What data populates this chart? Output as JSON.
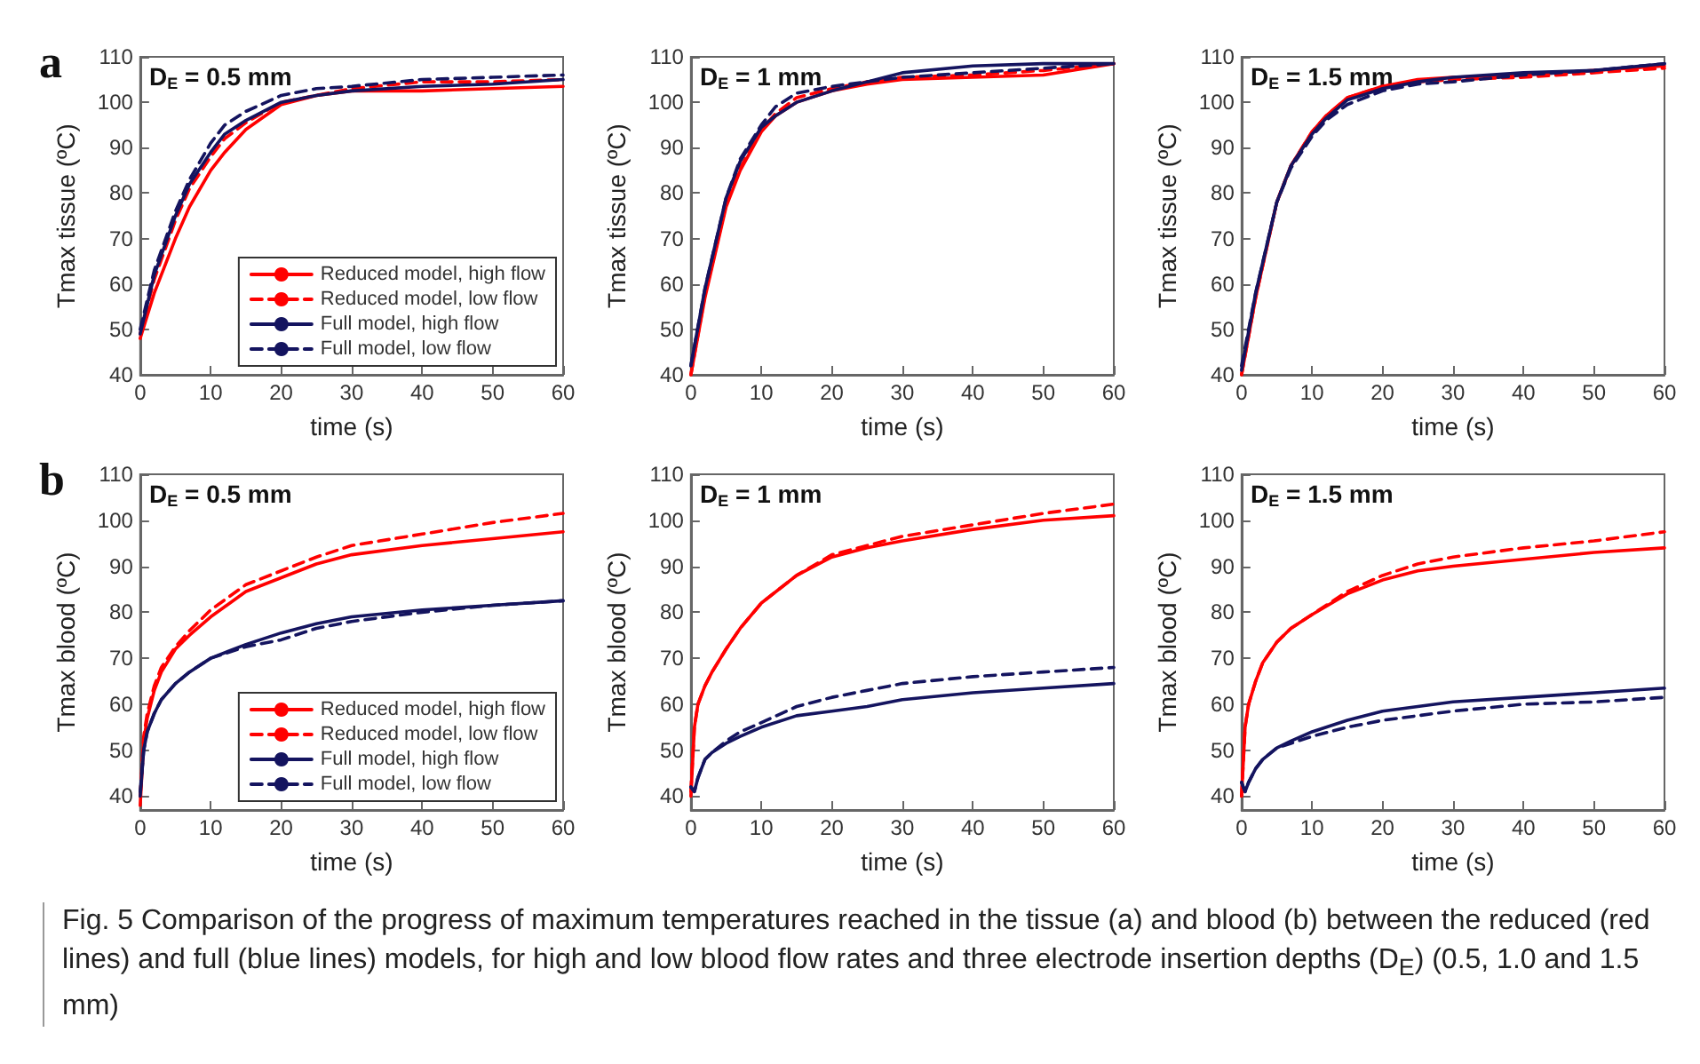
{
  "chart_data": [
    {
      "type": "line",
      "title": "a",
      "annotations": [
        "D$_{E}$ = 0.5 mm"
      ],
      "xlabel": "time (s)",
      "ylabel": "Tmax tissue (ºC)",
      "xlim": [
        0,
        60
      ],
      "xticks": [
        0,
        10,
        20,
        30,
        40,
        50,
        60
      ],
      "ylim": [
        40,
        110
      ],
      "yticks": [
        40,
        50,
        60,
        70,
        80,
        90,
        100,
        110
      ],
      "legend": "bottom right",
      "x": [
        0,
        2,
        5,
        7,
        10,
        12,
        15,
        20,
        25,
        30,
        40,
        50,
        60
      ],
      "series": [
        {
          "name": "Reduced model, high flow",
          "color": "#ff0000",
          "line_style": "solid",
          "values": [
            48,
            58,
            70,
            77,
            85,
            89,
            94,
            99.5,
            101.5,
            102.5,
            102.5,
            103,
            103.5
          ]
        },
        {
          "name": "Reduced model, low flow",
          "color": "#ff0000",
          "line_style": "dashed",
          "values": [
            49,
            61,
            74,
            81,
            88,
            92,
            95.5,
            100,
            101.5,
            103,
            104.5,
            104.5,
            105
          ]
        },
        {
          "name": "Full model, high flow",
          "color": "#14145f",
          "line_style": "solid",
          "values": [
            49,
            62,
            75,
            82,
            89,
            93,
            96,
            100,
            101.5,
            102.5,
            103.5,
            104,
            105
          ]
        },
        {
          "name": "Full model, low flow",
          "color": "#14145f",
          "line_style": "dashed",
          "values": [
            50,
            63,
            76,
            83,
            91,
            95,
            98,
            101.5,
            103,
            103.5,
            105,
            105.5,
            106
          ]
        }
      ]
    },
    {
      "type": "line",
      "annotations": [
        "D$_{E}$ = 1 mm"
      ],
      "xlabel": "time (s)",
      "ylabel": "Tmax tissue (ºC)",
      "xlim": [
        0,
        60
      ],
      "xticks": [
        0,
        10,
        20,
        30,
        40,
        50,
        60
      ],
      "ylim": [
        40,
        110
      ],
      "yticks": [
        40,
        50,
        60,
        70,
        80,
        90,
        100,
        110
      ],
      "x": [
        0,
        2,
        5,
        7,
        10,
        12,
        15,
        20,
        25,
        30,
        40,
        50,
        60
      ],
      "series": [
        {
          "color": "#ff0000",
          "line_style": "solid",
          "values": [
            40,
            57,
            77,
            85,
            93.5,
            97,
            100,
            102.5,
            104,
            105,
            105.5,
            106,
            108.5
          ]
        },
        {
          "color": "#ff0000",
          "line_style": "dashed",
          "values": [
            40,
            57.5,
            77.5,
            85.5,
            94,
            97.5,
            101,
            103,
            104.5,
            105.5,
            106,
            107,
            108.5
          ]
        },
        {
          "color": "#14145f",
          "line_style": "solid",
          "values": [
            42,
            59,
            79,
            87,
            94.5,
            97,
            100,
            102.5,
            104.5,
            106.5,
            108,
            108.5,
            108.5
          ]
        },
        {
          "color": "#14145f",
          "line_style": "dashed",
          "values": [
            42,
            59,
            79,
            87.5,
            95,
            99,
            102,
            103.5,
            104.5,
            105.5,
            106.5,
            107.5,
            108.5
          ]
        }
      ]
    },
    {
      "type": "line",
      "annotations": [
        "D$_{E}$ = 1.5 mm"
      ],
      "xlabel": "time (s)",
      "ylabel": "Tmax tissue (ºC)",
      "xlim": [
        0,
        60
      ],
      "xticks": [
        0,
        10,
        20,
        30,
        40,
        50,
        60
      ],
      "ylim": [
        40,
        110
      ],
      "yticks": [
        40,
        50,
        60,
        70,
        80,
        90,
        100,
        110
      ],
      "x": [
        0,
        2,
        5,
        7,
        10,
        12,
        15,
        20,
        25,
        30,
        40,
        50,
        60
      ],
      "series": [
        {
          "color": "#ff0000",
          "line_style": "solid",
          "values": [
            40,
            57,
            78,
            86,
            93.5,
            97,
            101,
            103.5,
            105,
            105.5,
            106,
            107,
            108
          ]
        },
        {
          "color": "#ff0000",
          "line_style": "dashed",
          "values": [
            40,
            57,
            78,
            86,
            93.5,
            97,
            101,
            103.5,
            104.5,
            105,
            105.5,
            106.5,
            107.5
          ]
        },
        {
          "color": "#14145f",
          "line_style": "solid",
          "values": [
            41,
            58,
            78,
            86,
            93,
            96.5,
            100.5,
            103,
            104.5,
            105.5,
            106.5,
            107,
            108.5
          ]
        },
        {
          "color": "#14145f",
          "line_style": "dashed",
          "values": [
            42,
            58,
            78,
            85.5,
            92.5,
            96,
            99.5,
            102.5,
            104,
            104.5,
            106,
            107,
            108.5
          ]
        }
      ]
    },
    {
      "type": "line",
      "title": "b",
      "annotations": [
        "D$_{E}$ = 0.5 mm"
      ],
      "xlabel": "time (s)",
      "ylabel": "Tmax blood (ºC)",
      "xlim": [
        0,
        60
      ],
      "xticks": [
        0,
        10,
        20,
        30,
        40,
        50,
        60
      ],
      "ylim": [
        37,
        110
      ],
      "yticks": [
        40,
        50,
        60,
        70,
        80,
        90,
        100,
        110
      ],
      "legend": "bottom right",
      "x": [
        0,
        0.5,
        1,
        2,
        3,
        5,
        7,
        10,
        15,
        20,
        25,
        30,
        40,
        50,
        60
      ],
      "series": [
        {
          "name": "Reduced model, high flow",
          "color": "#ff0000",
          "line_style": "solid",
          "values": [
            38,
            52,
            57,
            63,
            67,
            72,
            75,
            79,
            84.5,
            87.5,
            90.5,
            92.5,
            94.5,
            96,
            97.5
          ]
        },
        {
          "name": "Reduced model, low flow",
          "color": "#ff0000",
          "line_style": "dashed",
          "values": [
            40,
            53,
            58,
            64,
            68,
            72.5,
            76,
            80.5,
            86,
            89,
            92,
            94.5,
            97,
            99.5,
            101.5
          ]
        },
        {
          "name": "Full model, high flow",
          "color": "#14145f",
          "line_style": "solid",
          "values": [
            40,
            50,
            54,
            58,
            61,
            64.5,
            67,
            70,
            73,
            75.5,
            77.5,
            79,
            80.5,
            81.5,
            82.5
          ]
        },
        {
          "name": "Full model, low flow",
          "color": "#14145f",
          "line_style": "dashed",
          "values": [
            41,
            50,
            54,
            58,
            61,
            64.5,
            67,
            70,
            72.5,
            74,
            76.5,
            78,
            80,
            81.5,
            82.5
          ]
        }
      ]
    },
    {
      "type": "line",
      "annotations": [
        "D$_{E}$ = 1 mm"
      ],
      "xlabel": "time (s)",
      "ylabel": "Tmax blood (ºC)",
      "xlim": [
        0,
        60
      ],
      "xticks": [
        0,
        10,
        20,
        30,
        40,
        50,
        60
      ],
      "ylim": [
        37,
        110
      ],
      "yticks": [
        40,
        50,
        60,
        70,
        80,
        90,
        100,
        110
      ],
      "x": [
        0,
        0.5,
        1,
        2,
        3,
        5,
        7,
        10,
        15,
        20,
        25,
        30,
        40,
        50,
        60
      ],
      "series": [
        {
          "color": "#ff0000",
          "line_style": "solid",
          "values": [
            40,
            55,
            60,
            64,
            67,
            72,
            76.5,
            82,
            88,
            92,
            94,
            95.5,
            98,
            100,
            101
          ]
        },
        {
          "color": "#ff0000",
          "line_style": "dashed",
          "values": [
            41,
            55,
            60,
            64,
            67,
            72,
            76.5,
            82,
            88,
            92.5,
            94.5,
            96.5,
            99,
            101.5,
            103.5
          ]
        },
        {
          "color": "#14145f",
          "line_style": "solid",
          "values": [
            42,
            41,
            44,
            48,
            49.5,
            51.5,
            53,
            55,
            57.5,
            58.5,
            59.5,
            61,
            62.5,
            63.5,
            64.5
          ]
        },
        {
          "color": "#14145f",
          "line_style": "dashed",
          "values": [
            42,
            41,
            44,
            48,
            49.5,
            52,
            54,
            56,
            59.5,
            61.5,
            63,
            64.5,
            66,
            67,
            68
          ]
        }
      ]
    },
    {
      "type": "line",
      "annotations": [
        "D$_{E}$ = 1.5 mm",
        "Fig. 5  Comparison of the progress of maximum temperatures reached in the tissue (a) and blood (b) between the reduced (red lines) and full (blue lines) models, for high and low blood flow rates and three electrode insertion depths (D$_{E}$) (0.5, 1.0 and 1.5 mm)"
      ],
      "xlabel": "time (s)",
      "ylabel": "Tmax blood (ºC)",
      "xlim": [
        0,
        60
      ],
      "xticks": [
        0,
        10,
        20,
        30,
        40,
        50,
        60
      ],
      "ylim": [
        37,
        110
      ],
      "yticks": [
        40,
        50,
        60,
        70,
        80,
        90,
        100,
        110
      ],
      "x": [
        0,
        0.5,
        1,
        2,
        3,
        5,
        7,
        10,
        15,
        20,
        25,
        30,
        40,
        50,
        60
      ],
      "series": [
        {
          "color": "#ff0000",
          "line_style": "solid",
          "values": [
            40,
            55,
            60,
            65,
            69,
            73.5,
            76.5,
            79.5,
            84,
            87,
            89,
            90,
            91.5,
            93,
            94
          ]
        },
        {
          "color": "#ff0000",
          "line_style": "dashed",
          "values": [
            40,
            55,
            60,
            65,
            69,
            73.5,
            76.5,
            79.5,
            84.5,
            88,
            90.5,
            92,
            94,
            95.5,
            97.5
          ]
        },
        {
          "color": "#14145f",
          "line_style": "solid",
          "values": [
            43,
            41,
            43,
            46,
            48,
            50.5,
            52,
            54,
            56.5,
            58.5,
            59.5,
            60.5,
            61.5,
            62.5,
            63.5
          ]
        },
        {
          "color": "#14145f",
          "line_style": "dashed",
          "values": [
            43,
            41,
            43,
            46,
            48,
            50.5,
            51.5,
            53,
            55,
            56.5,
            57.5,
            58.5,
            60,
            60.5,
            61.5
          ]
        }
      ]
    }
  ]
}
